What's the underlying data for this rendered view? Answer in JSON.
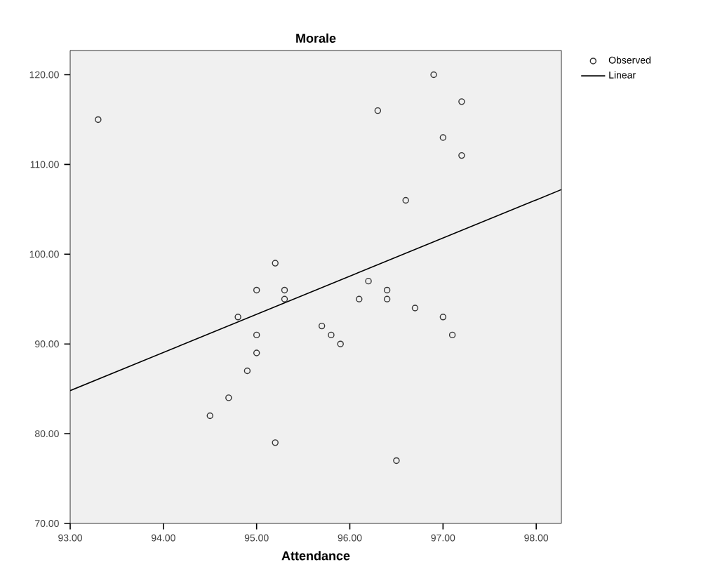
{
  "chart_data": {
    "type": "scatter",
    "title": "Morale",
    "xlabel": "Attendance",
    "xlim": [
      93,
      98.27
    ],
    "ylim": [
      70,
      122.7
    ],
    "xticks": [
      {
        "value": 93,
        "label": "93.00"
      },
      {
        "value": 94,
        "label": "94.00"
      },
      {
        "value": 95,
        "label": "95.00"
      },
      {
        "value": 96,
        "label": "96.00"
      },
      {
        "value": 97,
        "label": "97.00"
      },
      {
        "value": 98,
        "label": "98.00"
      }
    ],
    "yticks": [
      {
        "value": 70,
        "label": "70.00"
      },
      {
        "value": 80,
        "label": "80.00"
      },
      {
        "value": 90,
        "label": "90.00"
      },
      {
        "value": 100,
        "label": "100.00"
      },
      {
        "value": 110,
        "label": "110.00"
      },
      {
        "value": 120,
        "label": "120.00"
      }
    ],
    "grid": false,
    "legend": "top right",
    "series": [
      {
        "name": "Observed",
        "type": "scatter",
        "marker": "circle",
        "color": "#333333",
        "x": [
          93.3,
          94.5,
          94.7,
          94.8,
          94.9,
          95.0,
          95.0,
          95.0,
          95.2,
          95.2,
          95.3,
          95.3,
          95.7,
          95.8,
          95.9,
          96.1,
          96.2,
          96.3,
          96.4,
          96.4,
          96.5,
          96.6,
          96.7,
          96.9,
          97.0,
          97.0,
          97.1,
          97.2,
          97.2
        ],
        "values": [
          115,
          82,
          84,
          93,
          87,
          96,
          91,
          89,
          99,
          79,
          96,
          95,
          92,
          91,
          90,
          95,
          97,
          116,
          96,
          95,
          77,
          106,
          94,
          120,
          113,
          93,
          91,
          117,
          111
        ]
      },
      {
        "name": "Linear",
        "type": "line",
        "marker": "none",
        "line_style": "solid",
        "color": "#000000",
        "x": [
          93,
          98.27
        ],
        "values": [
          84.8,
          107.2
        ]
      }
    ]
  }
}
